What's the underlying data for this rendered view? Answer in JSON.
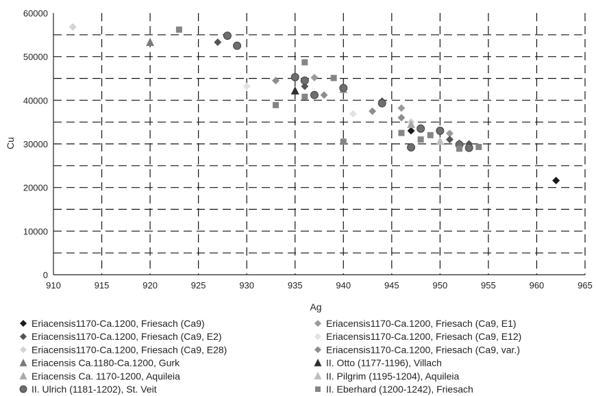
{
  "chart_data": {
    "type": "scatter",
    "title": "",
    "xlabel": "Ag",
    "ylabel": "Cu",
    "xlim": [
      910,
      965
    ],
    "ylim": [
      0,
      60000
    ],
    "x_ticks": [
      "910",
      "915",
      "920",
      "925",
      "930",
      "935",
      "940",
      "945",
      "950",
      "955",
      "960",
      "965"
    ],
    "y_ticks": [
      "0",
      "10000",
      "20000",
      "30000",
      "40000",
      "50000",
      "60000"
    ],
    "grid": true,
    "legend_position": "bottom",
    "series": [
      {
        "name": "Eriacensis1170-Ca.1200, Friesach (Ca9)",
        "marker": "diamond",
        "color": "#1a1a1a",
        "points": [
          [
            947,
            33000
          ],
          [
            962,
            21600
          ]
        ]
      },
      {
        "name": "Eriacensis1170-Ca.1200, Friesach (Ca9, E1)",
        "marker": "diamond",
        "color": "#9a9a9a",
        "points": [
          [
            937,
            45200
          ],
          [
            946,
            38200
          ],
          [
            951,
            32400
          ]
        ]
      },
      {
        "name": "Eriacensis1170-Ca.1200, Friesach (Ca9, E2)",
        "marker": "diamond",
        "color": "#555555",
        "points": [
          [
            927,
            53300
          ],
          [
            936,
            43200
          ],
          [
            944,
            39800
          ],
          [
            951,
            31000
          ],
          [
            953,
            30000
          ]
        ]
      },
      {
        "name": "Eriacensis1170-Ca.1200, Friesach (Ca9, E12)",
        "marker": "diamond",
        "color": "#e2e2e2",
        "points": [
          [
            930,
            43200
          ],
          [
            941,
            36900
          ],
          [
            948,
            34000
          ]
        ]
      },
      {
        "name": "Eriacensis1170-Ca.1200, Friesach (Ca9, E28)",
        "marker": "diamond",
        "color": "#d4d4d4",
        "points": [
          [
            912,
            56800
          ],
          [
            947,
            35000
          ]
        ]
      },
      {
        "name": "Eriacensis1170-Ca.1200, Friesach (Ca9, var.)",
        "marker": "diamond",
        "color": "#8e8e8e",
        "points": [
          [
            933,
            44500
          ],
          [
            938,
            41200
          ],
          [
            943,
            37500
          ],
          [
            946,
            36000
          ],
          [
            952,
            30200
          ]
        ]
      },
      {
        "name": "Eriacensis Ca.1180-Ca.1200, Gurk",
        "marker": "triangle",
        "color": "#7a7a7a",
        "points": [
          [
            920,
            53300
          ]
        ]
      },
      {
        "name": "II. Otto (1177-1196), Villach",
        "marker": "triangle",
        "color": "#2e2e2e",
        "points": [
          [
            935,
            42200
          ]
        ]
      },
      {
        "name": "Eriacensis Ca. 1170-1200, Aquileia",
        "marker": "triangle",
        "color": "#a8a8a8",
        "points": [
          [
            940,
            42500
          ],
          [
            947,
            34500
          ]
        ]
      },
      {
        "name": "II. Pilgrim (1195-1204), Aquileia",
        "marker": "triangle",
        "color": "#bdbdbd",
        "points": [
          [
            950,
            30600
          ]
        ]
      },
      {
        "name": "II. Ulrich (1181-1202), St. Veit",
        "marker": "circle",
        "color": "#6e6e6e",
        "points": [
          [
            928,
            54800
          ],
          [
            929,
            52500
          ],
          [
            935,
            45300
          ],
          [
            936,
            44500
          ],
          [
            937,
            41200
          ],
          [
            940,
            42800
          ],
          [
            944,
            39300
          ],
          [
            947,
            29200
          ],
          [
            948,
            33500
          ],
          [
            950,
            33000
          ],
          [
            952,
            29800
          ],
          [
            953,
            29100
          ]
        ]
      },
      {
        "name": "II. Eberhard (1200-1242), Friesach",
        "marker": "square",
        "color": "#858585",
        "points": [
          [
            923,
            56200
          ],
          [
            933,
            38900
          ],
          [
            936,
            48700
          ],
          [
            936,
            40800
          ],
          [
            939,
            45100
          ],
          [
            940,
            30500
          ],
          [
            946,
            32500
          ],
          [
            948,
            31000
          ],
          [
            949,
            32000
          ],
          [
            952,
            28900
          ],
          [
            954,
            29300
          ]
        ]
      }
    ]
  }
}
